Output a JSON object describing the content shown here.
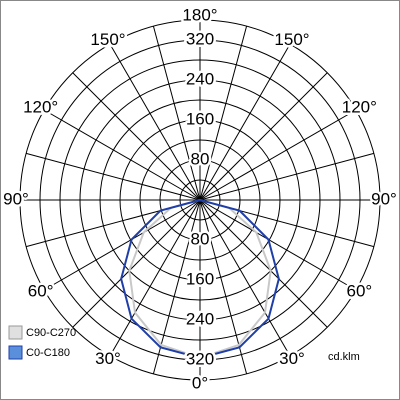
{
  "chart_data": {
    "type": "polar",
    "angles": [
      -90,
      -75,
      -60,
      -45,
      -30,
      -15,
      0,
      15,
      30,
      45,
      60,
      75,
      90
    ],
    "series": [
      {
        "name": "C90-C270",
        "color": "#c8c8c8",
        "values": [
          0,
          60,
          130,
          200,
          260,
          300,
          316,
          300,
          260,
          200,
          130,
          60,
          0
        ]
      },
      {
        "name": "C0-C180",
        "color": "#1f3fa8",
        "values": [
          0,
          82,
          158,
          223,
          274,
          305,
          316,
          305,
          274,
          223,
          158,
          82,
          0
        ]
      }
    ],
    "rlim": [
      0,
      360
    ],
    "rticks": [
      40,
      80,
      120,
      160,
      200,
      240,
      280,
      320,
      360
    ],
    "rtick_labels": [
      80,
      160,
      240,
      320
    ],
    "angle_grid_step": 15,
    "angle_ticks": [
      {
        "value": 0,
        "label": "0°"
      },
      {
        "value": -30,
        "label": "30°"
      },
      {
        "value": 30,
        "label": "30°"
      },
      {
        "value": -60,
        "label": "60°"
      },
      {
        "value": 60,
        "label": "60°"
      },
      {
        "value": -90,
        "label": "90°"
      },
      {
        "value": 90,
        "label": "90°"
      },
      {
        "value": -120,
        "label": "120°"
      },
      {
        "value": 120,
        "label": "120°"
      },
      {
        "value": -150,
        "label": "150°"
      },
      {
        "value": 150,
        "label": "150°"
      },
      {
        "value": 180,
        "label": "180°"
      }
    ],
    "unit": "cd.klm"
  }
}
